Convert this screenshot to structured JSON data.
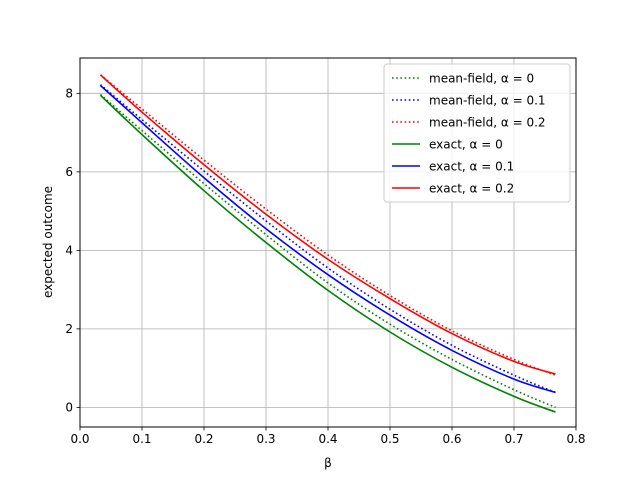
{
  "chart_data": {
    "type": "line",
    "title": "",
    "xlabel": "β",
    "ylabel": "expected outcome",
    "xlim": [
      0.0,
      0.8
    ],
    "ylim": [
      -0.5,
      8.9
    ],
    "xticks": [
      0.0,
      0.1,
      0.2,
      0.3,
      0.4,
      0.5,
      0.6,
      0.7,
      0.8
    ],
    "xtick_labels": [
      "0.0",
      "0.1",
      "0.2",
      "0.3",
      "0.4",
      "0.5",
      "0.6",
      "0.7",
      "0.8"
    ],
    "yticks": [
      0,
      2,
      4,
      6,
      8
    ],
    "ytick_labels": [
      "0",
      "2",
      "4",
      "6",
      "8"
    ],
    "grid": true,
    "legend_position": "top-right",
    "x": [
      0.033,
      0.1,
      0.2,
      0.3,
      0.4,
      0.5,
      0.6,
      0.7,
      0.767
    ],
    "series": [
      {
        "name": "mean-field, α = 0",
        "color": "#008000",
        "dash": "dotted",
        "values": [
          7.97,
          7.05,
          5.7,
          4.4,
          3.17,
          2.12,
          1.22,
          0.45,
          0.0
        ]
      },
      {
        "name": "mean-field, α = 0.1",
        "color": "#0000ff",
        "dash": "dotted",
        "values": [
          8.22,
          7.33,
          6.02,
          4.75,
          3.55,
          2.5,
          1.58,
          0.82,
          0.38
        ]
      },
      {
        "name": "mean-field, α = 0.2",
        "color": "#ff0000",
        "dash": "dotted",
        "values": [
          8.47,
          7.6,
          6.3,
          5.05,
          3.88,
          2.85,
          1.95,
          1.22,
          0.82
        ]
      },
      {
        "name": "exact, α = 0",
        "color": "#008000",
        "dash": "solid",
        "values": [
          7.95,
          6.95,
          5.52,
          4.2,
          2.98,
          1.92,
          1.02,
          0.28,
          -0.12
        ]
      },
      {
        "name": "exact, α = 0.1",
        "color": "#0000ff",
        "dash": "solid",
        "values": [
          8.2,
          7.25,
          5.85,
          4.55,
          3.38,
          2.35,
          1.45,
          0.72,
          0.38
        ]
      },
      {
        "name": "exact, α = 0.2",
        "color": "#ff0000",
        "dash": "solid",
        "values": [
          8.47,
          7.52,
          6.18,
          4.92,
          3.77,
          2.77,
          1.88,
          1.17,
          0.85
        ]
      }
    ]
  }
}
